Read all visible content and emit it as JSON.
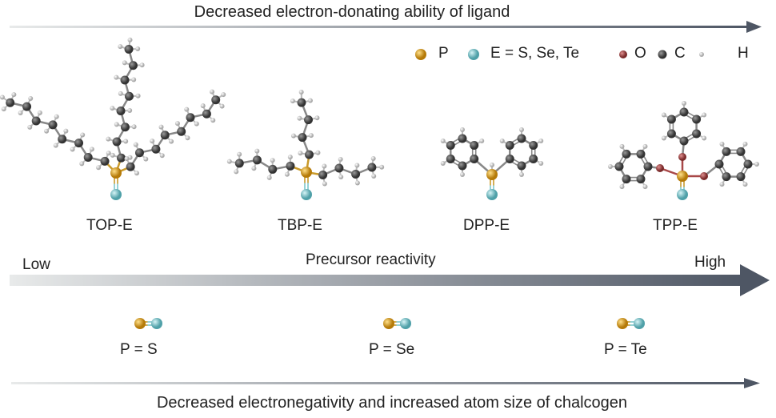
{
  "top_arrow": {
    "label": "Decreased electron-donating ability of ligand"
  },
  "legend": [
    {
      "label": "P",
      "color": "#d99a1c"
    },
    {
      "label": "E = S, Se, Te",
      "color": "#7cc6cc"
    },
    {
      "label": "O",
      "color": "#a84848"
    },
    {
      "label": "C",
      "color": "#555555"
    },
    {
      "label": "H",
      "color": "#c8c8c8"
    }
  ],
  "molecules": [
    {
      "label": "TOP-E"
    },
    {
      "label": "TBP-E"
    },
    {
      "label": "DPP-E"
    },
    {
      "label": "TPP-E"
    }
  ],
  "reactivity_arrow": {
    "label": "Precursor reactivity",
    "low": "Low",
    "high": "High"
  },
  "bonds": [
    {
      "label": "P = S"
    },
    {
      "label": "P = Se"
    },
    {
      "label": "P = Te"
    }
  ],
  "bottom_arrow": {
    "label": "Decreased electronegativity and increased atom size of chalcogen"
  }
}
